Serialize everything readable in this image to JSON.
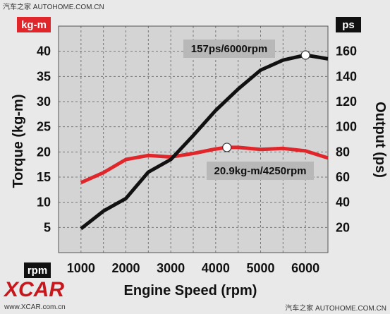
{
  "watermarks": {
    "top_left": "汽车之家  AUTOHOME.COM.CN",
    "bottom_right": "汽车之家 AUTOHOME.COM.CN",
    "logo": "XCAR",
    "logo_url": "www.XCAR.com.cn"
  },
  "colors": {
    "torque": "#e0262a",
    "output": "#111111",
    "grid": "#777777",
    "plot_bg": "#d4d4d4",
    "label_box": "#b8b8b8"
  },
  "chart_data": {
    "type": "line",
    "xlabel": "Engine Speed (rpm)",
    "ylabel_left": "Torque (kg-m)",
    "ylabel_right": "Output (ps)",
    "unit_left": "kg-m",
    "unit_right": "ps",
    "unit_x": "rpm",
    "xlim": [
      500,
      6500
    ],
    "ylim_left": [
      0,
      45
    ],
    "ylim_right": [
      0,
      180
    ],
    "x_ticks": [
      1000,
      2000,
      3000,
      4000,
      5000,
      6000
    ],
    "y_left_ticks": [
      5,
      10,
      15,
      20,
      25,
      30,
      35,
      40
    ],
    "y_right_ticks": [
      20,
      40,
      60,
      80,
      100,
      120,
      140,
      160
    ],
    "grid": true,
    "series": [
      {
        "name": "Torque",
        "axis": "left",
        "x": [
          1000,
          1500,
          2000,
          2500,
          3000,
          3500,
          4000,
          4250,
          4500,
          5000,
          5500,
          6000,
          6500
        ],
        "y": [
          13.9,
          15.9,
          18.5,
          19.3,
          19.0,
          19.7,
          20.6,
          20.9,
          20.9,
          20.5,
          20.7,
          20.2,
          18.8
        ]
      },
      {
        "name": "Output",
        "axis": "right",
        "x": [
          1000,
          1500,
          2000,
          2500,
          3000,
          3500,
          4000,
          4500,
          5000,
          5500,
          6000,
          6500
        ],
        "y": [
          19,
          33,
          43,
          64,
          74,
          93,
          113,
          130,
          145,
          153,
          157,
          154
        ]
      }
    ],
    "annotations": [
      {
        "text": "157ps/6000rpm",
        "series": "Output",
        "x": 6000,
        "y": 157
      },
      {
        "text": "20.9kg-m/4250rpm",
        "series": "Torque",
        "x": 4250,
        "y": 20.9
      }
    ]
  }
}
